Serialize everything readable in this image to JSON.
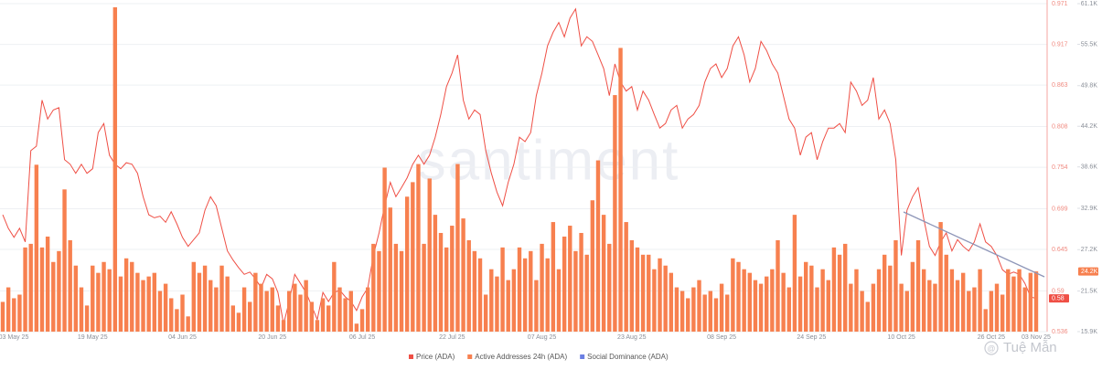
{
  "chart_data": {
    "type": "bar-line",
    "watermark": "santiment",
    "credit": "Tuệ Mẫn",
    "categories": [
      "03 May 25",
      null,
      null,
      null,
      null,
      null,
      null,
      null,
      null,
      null,
      null,
      null,
      null,
      null,
      null,
      null,
      "19 May 25",
      null,
      null,
      null,
      null,
      null,
      null,
      null,
      null,
      null,
      null,
      null,
      null,
      null,
      null,
      null,
      "04 Jun 25",
      null,
      null,
      null,
      null,
      null,
      null,
      null,
      null,
      null,
      null,
      null,
      null,
      null,
      null,
      null,
      "20 Jun 25",
      null,
      null,
      null,
      null,
      null,
      null,
      null,
      null,
      null,
      null,
      null,
      null,
      null,
      null,
      null,
      "06 Jul 25",
      null,
      null,
      null,
      null,
      null,
      null,
      null,
      null,
      null,
      null,
      null,
      null,
      null,
      null,
      null,
      "22 Jul 25",
      null,
      null,
      null,
      null,
      null,
      null,
      null,
      null,
      null,
      null,
      null,
      null,
      null,
      null,
      null,
      "07 Aug 25",
      null,
      null,
      null,
      null,
      null,
      null,
      null,
      null,
      null,
      null,
      null,
      null,
      null,
      null,
      null,
      "23 Aug 25",
      null,
      null,
      null,
      null,
      null,
      null,
      null,
      null,
      null,
      null,
      null,
      null,
      null,
      null,
      null,
      "08 Sep 25",
      null,
      null,
      null,
      null,
      null,
      null,
      null,
      null,
      null,
      null,
      null,
      null,
      null,
      null,
      null,
      "24 Sep 25",
      null,
      null,
      null,
      null,
      null,
      null,
      null,
      null,
      null,
      null,
      null,
      null,
      null,
      null,
      null,
      "10 Oct 25",
      null,
      null,
      null,
      null,
      null,
      null,
      null,
      null,
      null,
      null,
      null,
      null,
      null,
      null,
      null,
      "26 Oct 25",
      null,
      null,
      null,
      null,
      null,
      null,
      null,
      "03 Nov 25"
    ],
    "ylim": [
      0.536,
      0.971
    ],
    "yticks": [
      0.536,
      0.59,
      0.645,
      0.699,
      0.754,
      0.808,
      0.863,
      0.917,
      0.971
    ],
    "y2lim": [
      15900,
      61100
    ],
    "y2ticks": [
      {
        "value": 15900,
        "label": "15.9K"
      },
      {
        "value": 21500,
        "label": "21.5K"
      },
      {
        "value": 27200,
        "label": "27.2K"
      },
      {
        "value": 32900,
        "label": "32.9K"
      },
      {
        "value": 38600,
        "label": "38.6K"
      },
      {
        "value": 44200,
        "label": "44.2K"
      },
      {
        "value": 49800,
        "label": "49.8K"
      },
      {
        "value": 55500,
        "label": "55.5K"
      },
      {
        "value": 61100,
        "label": "61.1K"
      }
    ],
    "grid": true,
    "series": [
      {
        "name": "Price (ADA)",
        "type": "line",
        "color": "#ef4f45",
        "last_label": "0.58",
        "values": [
          0.691,
          0.673,
          0.661,
          0.673,
          0.655,
          0.776,
          0.782,
          0.843,
          0.818,
          0.83,
          0.833,
          0.764,
          0.758,
          0.746,
          0.758,
          0.746,
          0.752,
          0.8,
          0.812,
          0.77,
          0.758,
          0.752,
          0.76,
          0.758,
          0.746,
          0.715,
          0.691,
          0.687,
          0.689,
          0.681,
          0.695,
          0.679,
          0.661,
          0.649,
          0.658,
          0.667,
          0.697,
          0.715,
          0.703,
          0.673,
          0.643,
          0.631,
          0.621,
          0.612,
          0.615,
          0.606,
          0.594,
          0.612,
          0.606,
          0.588,
          0.546,
          0.576,
          0.612,
          0.6,
          0.588,
          0.57,
          0.552,
          0.588,
          0.576,
          0.588,
          0.591,
          0.582,
          0.576,
          0.564,
          0.582,
          0.594,
          0.637,
          0.667,
          0.703,
          0.734,
          0.715,
          0.727,
          0.74,
          0.758,
          0.77,
          0.758,
          0.77,
          0.794,
          0.824,
          0.861,
          0.879,
          0.903,
          0.843,
          0.818,
          0.83,
          0.824,
          0.776,
          0.746,
          0.721,
          0.703,
          0.734,
          0.758,
          0.794,
          0.788,
          0.8,
          0.849,
          0.879,
          0.915,
          0.933,
          0.946,
          0.927,
          0.952,
          0.964,
          0.915,
          0.927,
          0.921,
          0.903,
          0.885,
          0.849,
          0.891,
          0.867,
          0.855,
          0.861,
          0.83,
          0.855,
          0.843,
          0.824,
          0.806,
          0.812,
          0.83,
          0.836,
          0.806,
          0.818,
          0.824,
          0.836,
          0.867,
          0.885,
          0.891,
          0.873,
          0.885,
          0.915,
          0.927,
          0.903,
          0.867,
          0.885,
          0.921,
          0.909,
          0.891,
          0.879,
          0.849,
          0.818,
          0.806,
          0.77,
          0.794,
          0.8,
          0.764,
          0.788,
          0.806,
          0.806,
          0.812,
          0.8,
          0.867,
          0.855,
          0.836,
          0.843,
          0.873,
          0.818,
          0.83,
          0.812,
          0.764,
          0.637,
          0.697,
          0.715,
          0.727,
          0.685,
          0.649,
          0.637,
          0.655,
          0.667,
          0.643,
          0.658,
          0.649,
          0.643,
          0.655,
          0.679,
          0.655,
          0.649,
          0.637,
          0.618,
          0.612,
          0.615,
          0.612,
          0.6,
          0.582,
          0.58
        ]
      },
      {
        "name": "Active Addresses 24h (ADA)",
        "type": "bar",
        "axis": "y2",
        "color": "#f7804f",
        "last_label": "24.2K",
        "values": [
          20000,
          22000,
          20500,
          21000,
          27500,
          28000,
          38900,
          27500,
          29000,
          25500,
          27000,
          35500,
          28500,
          25000,
          22000,
          19500,
          25000,
          24000,
          25500,
          24500,
          60600,
          23500,
          26000,
          25500,
          24000,
          23000,
          23500,
          24000,
          21500,
          22500,
          20500,
          19000,
          21000,
          18000,
          25500,
          24000,
          25000,
          23000,
          22000,
          25000,
          23500,
          19500,
          18500,
          22000,
          20000,
          24000,
          22500,
          21500,
          22000,
          19500,
          17500,
          21500,
          22500,
          21000,
          23000,
          20000,
          17500,
          20500,
          19500,
          25500,
          22000,
          20500,
          21500,
          17000,
          19000,
          22000,
          28000,
          27000,
          38500,
          33000,
          28000,
          27000,
          34500,
          36500,
          39000,
          28000,
          37000,
          32000,
          29500,
          27500,
          30500,
          39000,
          31500,
          28500,
          27000,
          26000,
          21000,
          24500,
          23500,
          27500,
          23000,
          24500,
          27500,
          26000,
          27000,
          23000,
          28000,
          26000,
          31000,
          24500,
          29000,
          30500,
          27000,
          29500,
          26500,
          34000,
          39500,
          32000,
          28000,
          48500,
          55000,
          31000,
          28500,
          27500,
          26500,
          26500,
          24500,
          26000,
          25000,
          24000,
          22000,
          21500,
          20500,
          22000,
          23000,
          21000,
          21500,
          20500,
          22500,
          21000,
          26000,
          25500,
          24500,
          24000,
          23000,
          22500,
          23500,
          24500,
          28500,
          24000,
          22000,
          32000,
          23500,
          25500,
          25000,
          22000,
          24500,
          23000,
          27500,
          26500,
          28000,
          22500,
          24500,
          21500,
          20000,
          22500,
          24500,
          26500,
          25000,
          28500,
          22500,
          21500,
          25500,
          28500,
          24500,
          23000,
          22500,
          31000,
          26500,
          24500,
          23000,
          24000,
          21500,
          22000,
          24500,
          19000,
          21500,
          22500,
          21000,
          24500,
          23500,
          24500,
          22000,
          24000,
          24200
        ]
      }
    ],
    "extra_legend": [
      {
        "name": "Social Dominance (ADA)",
        "color": "#6b7fe3"
      }
    ]
  }
}
